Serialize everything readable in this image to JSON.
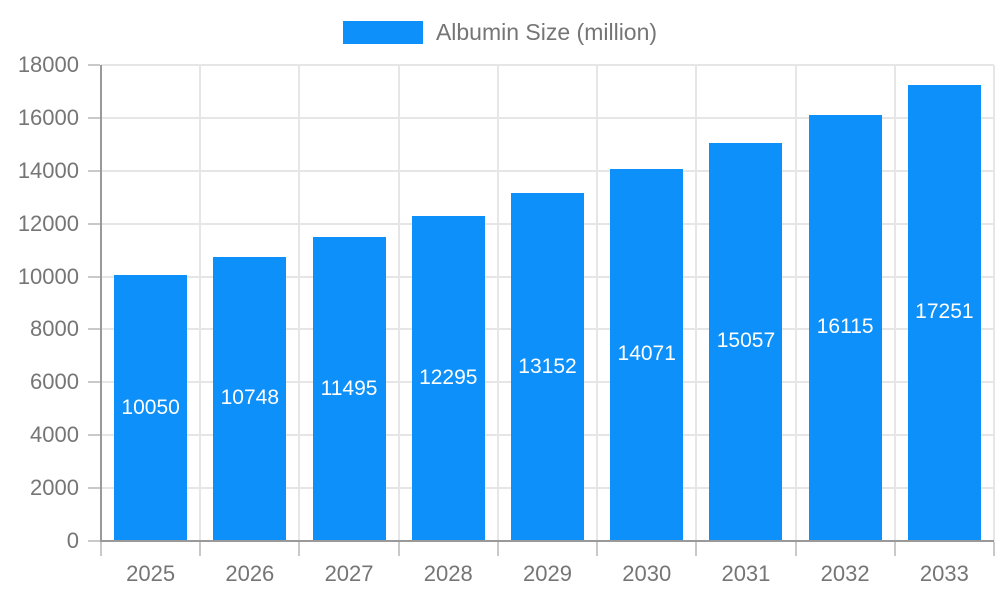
{
  "chart_data": {
    "type": "bar",
    "legend": "Albumin Size (million)",
    "categories": [
      "2025",
      "2026",
      "2027",
      "2028",
      "2029",
      "2030",
      "2031",
      "2032",
      "2033"
    ],
    "values": [
      10050,
      10748,
      11495,
      12295,
      13152,
      14071,
      15057,
      16115,
      17251
    ],
    "series": [
      {
        "name": "Albumin Size (million)",
        "values": [
          10050,
          10748,
          11495,
          12295,
          13152,
          14071,
          15057,
          16115,
          17251
        ]
      }
    ],
    "title": "",
    "xlabel": "",
    "ylabel": "",
    "ylim": [
      0,
      18000
    ],
    "ytick_step": 2000,
    "ytick_labels": [
      "0",
      "2000",
      "4000",
      "6000",
      "8000",
      "10000",
      "12000",
      "14000",
      "16000",
      "18000"
    ],
    "grid": true,
    "legend_position": "top",
    "value_labels": "inside-center",
    "colors": {
      "bar": "#0d90f9",
      "value_label": "#ffffff",
      "axis_text": "#757575",
      "legend_text": "#757575",
      "grid_line": "#e6e6e6",
      "axis_line": "#999999",
      "tick": "#c9c9c9",
      "background": "#ffffff"
    }
  }
}
